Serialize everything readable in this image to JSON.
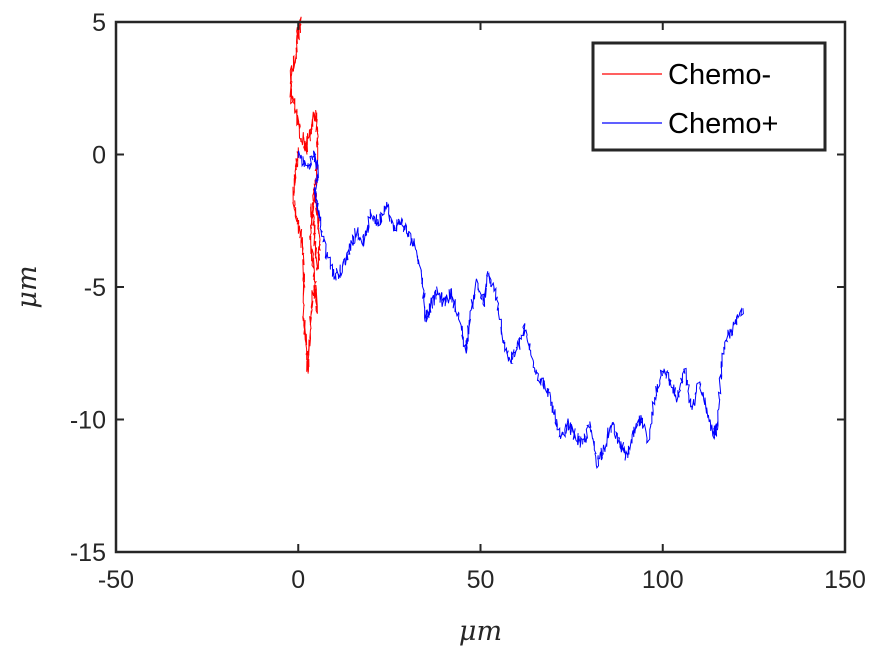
{
  "chart_data": {
    "type": "line",
    "title": "",
    "xlabel": "μm",
    "ylabel": "μm",
    "xlim": [
      -50,
      150
    ],
    "ylim": [
      -15,
      5
    ],
    "xticks": [
      "-50",
      "0",
      "50",
      "100",
      "150"
    ],
    "yticks": [
      "-15",
      "-10",
      "-5",
      "0",
      "5"
    ],
    "grid": false,
    "legend_position": "top-right",
    "series": [
      {
        "name": "Chemo-",
        "color": "#ff0000",
        "points": [
          [
            0,
            0
          ],
          [
            -0.8,
            -0.6
          ],
          [
            -1.4,
            -1.5
          ],
          [
            -0.6,
            -2.4
          ],
          [
            0.6,
            -3.0
          ],
          [
            1.3,
            -3.6
          ],
          [
            1.6,
            -4.8
          ],
          [
            1.4,
            -6.2
          ],
          [
            2.1,
            -7.1
          ],
          [
            2.6,
            -8.2
          ],
          [
            3.2,
            -6.9
          ],
          [
            3.7,
            -5.6
          ],
          [
            4.6,
            -5.0
          ],
          [
            5.2,
            -5.8
          ],
          [
            4.4,
            -4.4
          ],
          [
            3.3,
            -3.3
          ],
          [
            3.6,
            -2.1
          ],
          [
            4.7,
            -1.5
          ],
          [
            5.6,
            -2.6
          ],
          [
            5.9,
            -3.6
          ],
          [
            5.2,
            -4.2
          ],
          [
            4.4,
            -3.1
          ],
          [
            3.9,
            -2.0
          ],
          [
            4.9,
            -0.8
          ],
          [
            5.3,
            0.8
          ],
          [
            4.6,
            1.6
          ],
          [
            3.3,
            0.8
          ],
          [
            2.1,
            0.2
          ],
          [
            0.6,
            0.9
          ],
          [
            -0.6,
            1.7
          ],
          [
            -2.1,
            2.3
          ],
          [
            -1.9,
            3.1
          ],
          [
            -0.8,
            3.6
          ],
          [
            -0.4,
            4.4
          ],
          [
            0.4,
            4.7
          ],
          [
            0.6,
            5.0
          ]
        ]
      },
      {
        "name": "Chemo+",
        "color": "#0000ff",
        "points": [
          [
            0,
            0
          ],
          [
            2.5,
            -0.5
          ],
          [
            4.5,
            0.0
          ],
          [
            5.5,
            -0.6
          ],
          [
            4.5,
            -1.4
          ],
          [
            5.5,
            -2.2
          ],
          [
            7.5,
            -3.6
          ],
          [
            10,
            -4.6
          ],
          [
            12,
            -4.3
          ],
          [
            14,
            -3.6
          ],
          [
            16,
            -2.9
          ],
          [
            18,
            -3.3
          ],
          [
            20,
            -2.2
          ],
          [
            22,
            -2.6
          ],
          [
            24,
            -1.8
          ],
          [
            26,
            -2.8
          ],
          [
            28,
            -2.5
          ],
          [
            30,
            -3.0
          ],
          [
            32,
            -3.4
          ],
          [
            34,
            -4.6
          ],
          [
            35,
            -6.2
          ],
          [
            36,
            -5.8
          ],
          [
            38,
            -5.2
          ],
          [
            40,
            -5.6
          ],
          [
            42,
            -5.2
          ],
          [
            44,
            -6.2
          ],
          [
            46,
            -7.4
          ],
          [
            47,
            -6.2
          ],
          [
            49,
            -4.8
          ],
          [
            51,
            -5.6
          ],
          [
            52,
            -4.5
          ],
          [
            54,
            -5.2
          ],
          [
            56,
            -6.8
          ],
          [
            58,
            -7.8
          ],
          [
            60,
            -7.4
          ],
          [
            62,
            -6.6
          ],
          [
            64,
            -7.6
          ],
          [
            66,
            -8.4
          ],
          [
            68,
            -8.8
          ],
          [
            70,
            -9.6
          ],
          [
            72,
            -10.8
          ],
          [
            74,
            -10.2
          ],
          [
            76,
            -10.6
          ],
          [
            78,
            -11.0
          ],
          [
            80,
            -10.2
          ],
          [
            82,
            -11.6
          ],
          [
            84,
            -11.0
          ],
          [
            86,
            -10.2
          ],
          [
            88,
            -10.8
          ],
          [
            90,
            -11.4
          ],
          [
            92,
            -10.6
          ],
          [
            94,
            -10.0
          ],
          [
            96,
            -10.8
          ],
          [
            98,
            -9.0
          ],
          [
            100,
            -8.0
          ],
          [
            102,
            -8.6
          ],
          [
            104,
            -9.2
          ],
          [
            106,
            -8.2
          ],
          [
            108,
            -9.6
          ],
          [
            110,
            -8.6
          ],
          [
            112,
            -9.6
          ],
          [
            114,
            -10.6
          ],
          [
            115,
            -10.2
          ],
          [
            116,
            -8.0
          ],
          [
            118,
            -6.8
          ],
          [
            120,
            -6.4
          ],
          [
            122,
            -5.8
          ]
        ]
      }
    ]
  }
}
